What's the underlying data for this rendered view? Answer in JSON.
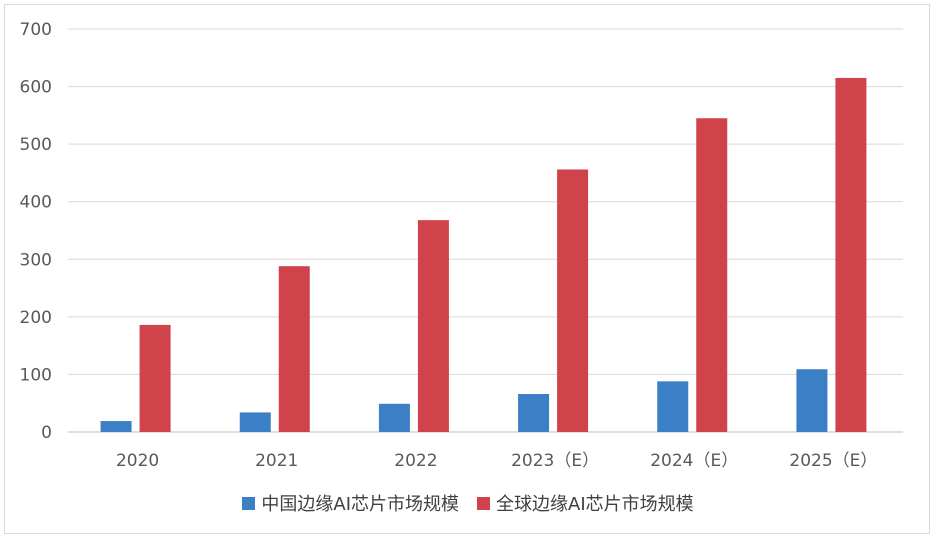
{
  "chart_data": {
    "type": "bar",
    "title": "",
    "xlabel": "",
    "ylabel": "",
    "categories": [
      "2020",
      "2021",
      "2022",
      "2023（E）",
      "2024（E）",
      "2025（E）"
    ],
    "series": [
      {
        "name": "中国边缘AI芯片市场规模",
        "color": "#3b7fc4",
        "values": [
          19,
          34,
          49,
          66,
          88,
          109
        ]
      },
      {
        "name": "全球边缘AI芯片市场规模",
        "color": "#d0434a",
        "values": [
          186,
          288,
          368,
          456,
          545,
          615
        ]
      }
    ],
    "ylim": [
      0,
      700
    ],
    "yticks": [
      "0",
      "100",
      "200",
      "300",
      "400",
      "500",
      "600",
      "700"
    ],
    "grid": true,
    "legend_position": "bottom"
  }
}
